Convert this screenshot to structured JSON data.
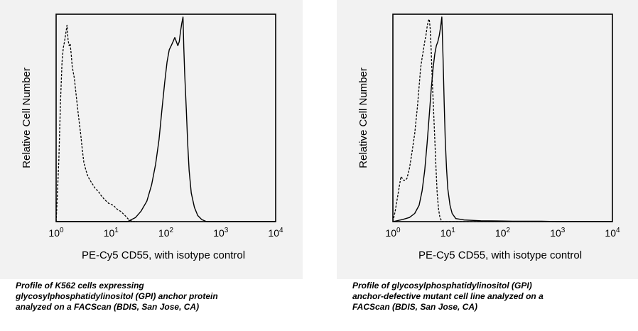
{
  "chart_data": [
    {
      "type": "histogram",
      "xlabel": "PE-Cy5 CD55, with isotype control",
      "ylabel": "Relative Cell Number",
      "x_scale": "log",
      "xlim": [
        1,
        10000
      ],
      "x_ticks": [
        {
          "value": 1,
          "base": "10",
          "exp": "0"
        },
        {
          "value": 10,
          "base": "10",
          "exp": "1"
        },
        {
          "value": 100,
          "base": "10",
          "exp": "2"
        },
        {
          "value": 1000,
          "base": "10",
          "exp": "3"
        },
        {
          "value": 10000,
          "base": "10",
          "exp": "4"
        }
      ],
      "ylim": [
        0,
        1
      ],
      "series": [
        {
          "style": "dashed",
          "points": [
            [
              1.0,
              0.0
            ],
            [
              1.05,
              0.12
            ],
            [
              1.12,
              0.3
            ],
            [
              1.2,
              0.58
            ],
            [
              1.28,
              0.78
            ],
            [
              1.35,
              0.85
            ],
            [
              1.42,
              0.88
            ],
            [
              1.5,
              0.92
            ],
            [
              1.58,
              0.96
            ],
            [
              1.65,
              0.89
            ],
            [
              1.72,
              0.86
            ],
            [
              1.8,
              0.87
            ],
            [
              1.88,
              0.82
            ],
            [
              1.96,
              0.76
            ],
            [
              2.05,
              0.73
            ],
            [
              2.15,
              0.7
            ],
            [
              2.25,
              0.65
            ],
            [
              2.38,
              0.59
            ],
            [
              2.5,
              0.54
            ],
            [
              2.65,
              0.48
            ],
            [
              2.8,
              0.43
            ],
            [
              3.0,
              0.35
            ],
            [
              3.2,
              0.29
            ],
            [
              3.5,
              0.25
            ],
            [
              3.8,
              0.22
            ],
            [
              4.2,
              0.2
            ],
            [
              4.7,
              0.18
            ],
            [
              5.2,
              0.16
            ],
            [
              5.8,
              0.15
            ],
            [
              6.5,
              0.13
            ],
            [
              7.5,
              0.11
            ],
            [
              9.0,
              0.09
            ],
            [
              11,
              0.08
            ],
            [
              13,
              0.06
            ],
            [
              15,
              0.05
            ],
            [
              18,
              0.03
            ],
            [
              21,
              0.01
            ],
            [
              25,
              0.0
            ],
            [
              30,
              0.0
            ]
          ]
        },
        {
          "style": "solid",
          "points": [
            [
              1.0,
              0.0
            ],
            [
              20,
              0.0
            ],
            [
              28,
              0.02
            ],
            [
              35,
              0.05
            ],
            [
              45,
              0.1
            ],
            [
              55,
              0.18
            ],
            [
              65,
              0.28
            ],
            [
              75,
              0.4
            ],
            [
              85,
              0.55
            ],
            [
              95,
              0.68
            ],
            [
              105,
              0.78
            ],
            [
              115,
              0.84
            ],
            [
              125,
              0.86
            ],
            [
              135,
              0.88
            ],
            [
              145,
              0.9
            ],
            [
              155,
              0.88
            ],
            [
              165,
              0.86
            ],
            [
              175,
              0.88
            ],
            [
              185,
              0.93
            ],
            [
              195,
              0.97
            ],
            [
              205,
              1.0
            ],
            [
              212,
              0.85
            ],
            [
              220,
              0.72
            ],
            [
              235,
              0.55
            ],
            [
              250,
              0.38
            ],
            [
              265,
              0.25
            ],
            [
              290,
              0.14
            ],
            [
              330,
              0.07
            ],
            [
              380,
              0.03
            ],
            [
              450,
              0.01
            ],
            [
              550,
              0.0
            ],
            [
              10000,
              0.0
            ]
          ]
        }
      ]
    },
    {
      "type": "histogram",
      "xlabel": "PE-Cy5 CD55, with isotype control",
      "ylabel": "Relative Cell Number",
      "x_scale": "log",
      "xlim": [
        1,
        10000
      ],
      "x_ticks": [
        {
          "value": 1,
          "base": "10",
          "exp": "0"
        },
        {
          "value": 10,
          "base": "10",
          "exp": "1"
        },
        {
          "value": 100,
          "base": "10",
          "exp": "2"
        },
        {
          "value": 1000,
          "base": "10",
          "exp": "3"
        },
        {
          "value": 10000,
          "base": "10",
          "exp": "4"
        }
      ],
      "ylim": [
        0,
        1
      ],
      "series": [
        {
          "style": "dashed",
          "points": [
            [
              1.0,
              0.0
            ],
            [
              1.1,
              0.05
            ],
            [
              1.25,
              0.14
            ],
            [
              1.4,
              0.22
            ],
            [
              1.6,
              0.2
            ],
            [
              1.8,
              0.21
            ],
            [
              2.0,
              0.26
            ],
            [
              2.2,
              0.33
            ],
            [
              2.5,
              0.43
            ],
            [
              2.8,
              0.56
            ],
            [
              3.0,
              0.66
            ],
            [
              3.2,
              0.75
            ],
            [
              3.4,
              0.8
            ],
            [
              3.6,
              0.84
            ],
            [
              3.8,
              0.88
            ],
            [
              4.0,
              0.91
            ],
            [
              4.2,
              0.95
            ],
            [
              4.4,
              0.98
            ],
            [
              4.6,
              0.99
            ],
            [
              4.8,
              0.94
            ],
            [
              5.0,
              0.83
            ],
            [
              5.2,
              0.7
            ],
            [
              5.5,
              0.55
            ],
            [
              5.8,
              0.4
            ],
            [
              6.1,
              0.26
            ],
            [
              6.4,
              0.14
            ],
            [
              6.8,
              0.06
            ],
            [
              7.2,
              0.02
            ],
            [
              7.8,
              0.0
            ],
            [
              10000,
              0.0
            ]
          ]
        },
        {
          "style": "solid",
          "points": [
            [
              1.0,
              0.0
            ],
            [
              1.5,
              0.01
            ],
            [
              2.0,
              0.02
            ],
            [
              2.5,
              0.04
            ],
            [
              3.0,
              0.08
            ],
            [
              3.4,
              0.15
            ],
            [
              3.8,
              0.25
            ],
            [
              4.2,
              0.38
            ],
            [
              4.6,
              0.52
            ],
            [
              5.0,
              0.65
            ],
            [
              5.4,
              0.75
            ],
            [
              5.8,
              0.82
            ],
            [
              6.2,
              0.86
            ],
            [
              6.6,
              0.88
            ],
            [
              7.0,
              0.91
            ],
            [
              7.4,
              0.95
            ],
            [
              7.8,
              1.0
            ],
            [
              8.2,
              0.8
            ],
            [
              8.6,
              0.58
            ],
            [
              9.0,
              0.4
            ],
            [
              9.5,
              0.26
            ],
            [
              10,
              0.16
            ],
            [
              11,
              0.08
            ],
            [
              12,
              0.04
            ],
            [
              14,
              0.015
            ],
            [
              20,
              0.008
            ],
            [
              40,
              0.004
            ],
            [
              80,
              0.003
            ],
            [
              150,
              0.002
            ],
            [
              300,
              0.002
            ],
            [
              500,
              0.002
            ],
            [
              1000,
              0.0
            ],
            [
              10000,
              0.0
            ]
          ]
        }
      ]
    }
  ],
  "captions": [
    [
      "Profile of K562 cells expressing",
      "glycosylphosphatidylinositol (GPI) anchor protein",
      "analyzed on a FACScan (BDIS, San Jose, CA)"
    ],
    [
      "Profile of glycosylphosphatidylinositol (GPI)",
      "anchor-defective mutant cell line analyzed on a",
      "FACScan (BDIS, San Jose, CA)"
    ]
  ]
}
